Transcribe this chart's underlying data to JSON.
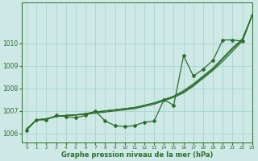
{
  "xlabel": "Graphe pression niveau de la mer (hPa)",
  "xlim": [
    -0.5,
    23
  ],
  "ylim": [
    1005.6,
    1011.8
  ],
  "yticks": [
    1006,
    1007,
    1008,
    1009,
    1010
  ],
  "xticks": [
    0,
    1,
    2,
    3,
    4,
    5,
    6,
    7,
    8,
    9,
    10,
    11,
    12,
    13,
    14,
    15,
    16,
    17,
    18,
    19,
    20,
    21,
    22,
    23
  ],
  "bg_color": "#cde8e5",
  "grid_color": "#a8d5d0",
  "line_color": "#2d6e2d",
  "series_smooth1": [
    1006.2,
    1006.6,
    1006.65,
    1006.75,
    1006.8,
    1006.82,
    1006.85,
    1006.9,
    1006.95,
    1007.0,
    1007.05,
    1007.1,
    1007.2,
    1007.3,
    1007.45,
    1007.6,
    1007.8,
    1008.1,
    1008.45,
    1008.8,
    1009.2,
    1009.65,
    1010.1,
    1011.25
  ],
  "series_smooth2": [
    1006.2,
    1006.6,
    1006.65,
    1006.75,
    1006.8,
    1006.82,
    1006.88,
    1006.95,
    1007.0,
    1007.05,
    1007.1,
    1007.15,
    1007.25,
    1007.35,
    1007.5,
    1007.65,
    1007.85,
    1008.15,
    1008.5,
    1008.85,
    1009.3,
    1009.75,
    1010.15,
    1011.25
  ],
  "series_smooth3": [
    1006.2,
    1006.6,
    1006.65,
    1006.75,
    1006.8,
    1006.82,
    1006.88,
    1006.95,
    1007.0,
    1007.05,
    1007.1,
    1007.15,
    1007.25,
    1007.35,
    1007.5,
    1007.65,
    1007.9,
    1008.2,
    1008.55,
    1008.9,
    1009.35,
    1009.8,
    1010.2,
    1011.25
  ],
  "series_jagged": [
    1006.15,
    1006.6,
    1006.6,
    1006.8,
    1006.75,
    1006.7,
    1006.8,
    1007.0,
    1006.55,
    1006.35,
    1006.3,
    1006.35,
    1006.5,
    1006.55,
    1007.5,
    1007.25,
    1009.45,
    1008.55,
    1008.85,
    1009.25,
    1010.15,
    1010.15,
    1010.1,
    1011.25
  ],
  "marker": "D",
  "markersize": 2.0,
  "linewidth": 0.9,
  "tick_fontsize": 5.5,
  "label_fontsize": 6.0
}
